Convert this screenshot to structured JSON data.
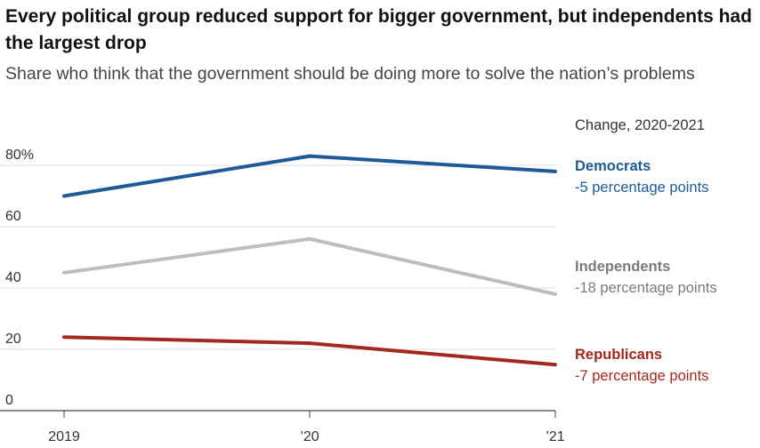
{
  "title": "Every political group reduced support for bigger government, but independents had the largest drop",
  "subtitle": "Share who think that the government should be doing more to solve the nation’s problems",
  "legend_heading": "Change, 2020-2021",
  "chart_data": {
    "type": "line",
    "title": "Every political group reduced support for bigger government, but independents had the largest drop",
    "subtitle": "Share who think that the government should be doing more to solve the nation’s problems",
    "x": [
      2019,
      2020,
      2021
    ],
    "x_tick_labels": [
      "2019",
      "’20",
      "’21"
    ],
    "y_ticks": [
      0,
      20,
      40,
      60,
      80
    ],
    "y_tick_labels": [
      "0",
      "20",
      "40",
      "60",
      "80%"
    ],
    "ylim": [
      0,
      85
    ],
    "grid": true,
    "legend_placement": "right",
    "series": [
      {
        "name": "Democrats",
        "change": "-5 percentage points",
        "color": "#1f5a96",
        "label_color": "#1f5a96",
        "values": [
          70,
          83,
          78
        ]
      },
      {
        "name": "Independents",
        "change": "-18 percentage points",
        "color": "#bdbdbd",
        "label_color": "#7a7a7a",
        "values": [
          45,
          56,
          38
        ]
      },
      {
        "name": "Republicans",
        "change": "-7 percentage points",
        "color": "#a3281f",
        "label_color": "#a3281f",
        "values": [
          24,
          22,
          15
        ]
      }
    ]
  }
}
